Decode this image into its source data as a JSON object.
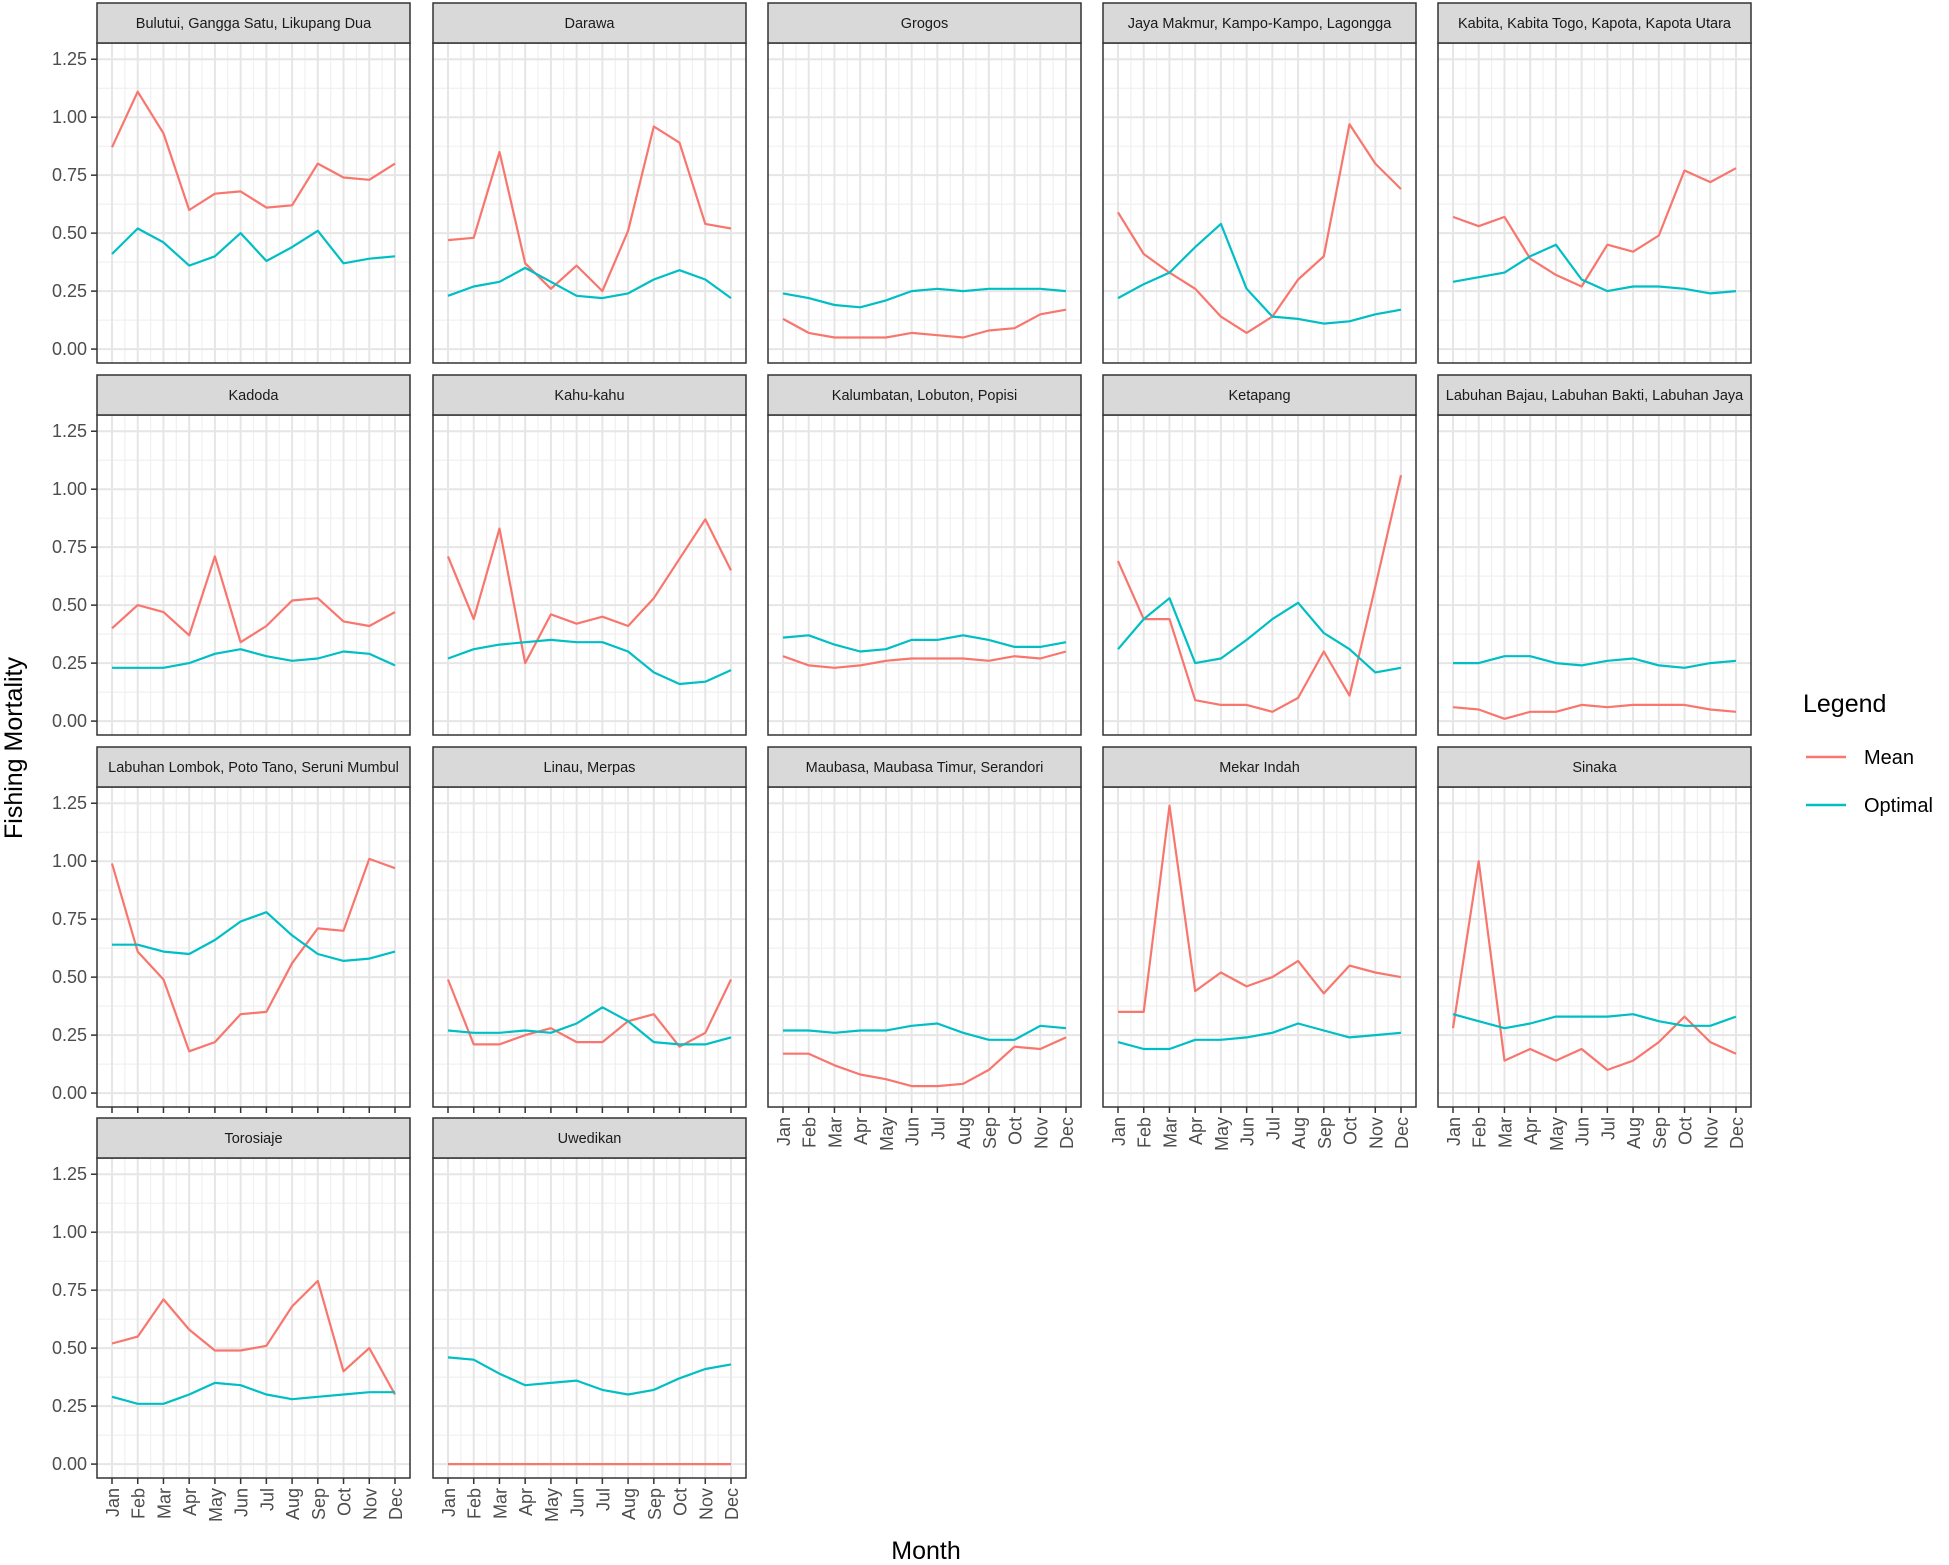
{
  "chart_data": {
    "type": "line",
    "xlabel": "Month",
    "ylabel": "Fishing Mortality",
    "ylim": [
      -0.06,
      1.32
    ],
    "yticks": [
      0.0,
      0.25,
      0.5,
      0.75,
      1.0,
      1.25
    ],
    "ytick_labels": [
      "0.00",
      "0.25",
      "0.50",
      "0.75",
      "1.00",
      "1.25"
    ],
    "categories": [
      "Jan",
      "Feb",
      "Mar",
      "Apr",
      "May",
      "Jun",
      "Jul",
      "Aug",
      "Sep",
      "Oct",
      "Nov",
      "Dec"
    ],
    "grid": true,
    "legend": {
      "title": "Legend",
      "position": "right",
      "entries": [
        {
          "name": "Mean",
          "color": "#F8766D"
        },
        {
          "name": "Optimal",
          "color": "#00BFC4"
        }
      ]
    },
    "facets": [
      {
        "title": "Bulutui, Gangga Satu, Likupang Dua",
        "series": [
          {
            "name": "Mean",
            "values": [
              0.87,
              1.11,
              0.93,
              0.6,
              0.67,
              0.68,
              0.61,
              0.62,
              0.8,
              0.74,
              0.73,
              0.8
            ]
          },
          {
            "name": "Optimal",
            "values": [
              0.41,
              0.52,
              0.46,
              0.36,
              0.4,
              0.5,
              0.38,
              0.44,
              0.51,
              0.37,
              0.39,
              0.4
            ]
          }
        ]
      },
      {
        "title": "Darawa",
        "series": [
          {
            "name": "Mean",
            "values": [
              0.47,
              0.48,
              0.85,
              0.37,
              0.26,
              0.36,
              0.25,
              0.51,
              0.96,
              0.89,
              0.54,
              0.52
            ]
          },
          {
            "name": "Optimal",
            "values": [
              0.23,
              0.27,
              0.29,
              0.35,
              0.29,
              0.23,
              0.22,
              0.24,
              0.3,
              0.34,
              0.3,
              0.22
            ]
          }
        ]
      },
      {
        "title": "Grogos",
        "series": [
          {
            "name": "Mean",
            "values": [
              0.13,
              0.07,
              0.05,
              0.05,
              0.05,
              0.07,
              0.06,
              0.05,
              0.08,
              0.09,
              0.15,
              0.17
            ]
          },
          {
            "name": "Optimal",
            "values": [
              0.24,
              0.22,
              0.19,
              0.18,
              0.21,
              0.25,
              0.26,
              0.25,
              0.26,
              0.26,
              0.26,
              0.25
            ]
          }
        ]
      },
      {
        "title": "Jaya Makmur, Kampo-Kampo, Lagongga",
        "series": [
          {
            "name": "Mean",
            "values": [
              0.59,
              0.41,
              0.33,
              0.26,
              0.14,
              0.07,
              0.14,
              0.3,
              0.4,
              0.97,
              0.8,
              0.69
            ]
          },
          {
            "name": "Optimal",
            "values": [
              0.22,
              0.28,
              0.33,
              0.44,
              0.54,
              0.26,
              0.14,
              0.13,
              0.11,
              0.12,
              0.15,
              0.17
            ]
          }
        ]
      },
      {
        "title": "Kabita, Kabita Togo, Kapota, Kapota Utara",
        "series": [
          {
            "name": "Mean",
            "values": [
              0.57,
              0.53,
              0.57,
              0.39,
              0.32,
              0.27,
              0.45,
              0.42,
              0.49,
              0.77,
              0.72,
              0.78
            ]
          },
          {
            "name": "Optimal",
            "values": [
              0.29,
              0.31,
              0.33,
              0.4,
              0.45,
              0.3,
              0.25,
              0.27,
              0.27,
              0.26,
              0.24,
              0.25
            ]
          }
        ]
      },
      {
        "title": "Kadoda",
        "series": [
          {
            "name": "Mean",
            "values": [
              0.4,
              0.5,
              0.47,
              0.37,
              0.71,
              0.34,
              0.41,
              0.52,
              0.53,
              0.43,
              0.41,
              0.47
            ]
          },
          {
            "name": "Optimal",
            "values": [
              0.23,
              0.23,
              0.23,
              0.25,
              0.29,
              0.31,
              0.28,
              0.26,
              0.27,
              0.3,
              0.29,
              0.24
            ]
          }
        ]
      },
      {
        "title": "Kahu-kahu",
        "series": [
          {
            "name": "Mean",
            "values": [
              0.71,
              0.44,
              0.83,
              0.25,
              0.46,
              0.42,
              0.45,
              0.41,
              0.53,
              0.7,
              0.87,
              0.65
            ]
          },
          {
            "name": "Optimal",
            "values": [
              0.27,
              0.31,
              0.33,
              0.34,
              0.35,
              0.34,
              0.34,
              0.3,
              0.21,
              0.16,
              0.17,
              0.22
            ]
          }
        ]
      },
      {
        "title": "Kalumbatan, Lobuton, Popisi",
        "series": [
          {
            "name": "Mean",
            "values": [
              0.28,
              0.24,
              0.23,
              0.24,
              0.26,
              0.27,
              0.27,
              0.27,
              0.26,
              0.28,
              0.27,
              0.3
            ]
          },
          {
            "name": "Optimal",
            "values": [
              0.36,
              0.37,
              0.33,
              0.3,
              0.31,
              0.35,
              0.35,
              0.37,
              0.35,
              0.32,
              0.32,
              0.34
            ]
          }
        ]
      },
      {
        "title": "Ketapang",
        "series": [
          {
            "name": "Mean",
            "values": [
              0.69,
              0.44,
              0.44,
              0.09,
              0.07,
              0.07,
              0.04,
              0.1,
              0.3,
              0.11,
              0.58,
              1.06
            ]
          },
          {
            "name": "Optimal",
            "values": [
              0.31,
              0.44,
              0.53,
              0.25,
              0.27,
              0.35,
              0.44,
              0.51,
              0.38,
              0.31,
              0.21,
              0.23
            ]
          }
        ]
      },
      {
        "title": "Labuhan Bajau, Labuhan Bakti, Labuhan Jaya",
        "series": [
          {
            "name": "Mean",
            "values": [
              0.06,
              0.05,
              0.01,
              0.04,
              0.04,
              0.07,
              0.06,
              0.07,
              0.07,
              0.07,
              0.05,
              0.04
            ]
          },
          {
            "name": "Optimal",
            "values": [
              0.25,
              0.25,
              0.28,
              0.28,
              0.25,
              0.24,
              0.26,
              0.27,
              0.24,
              0.23,
              0.25,
              0.26
            ]
          }
        ]
      },
      {
        "title": "Labuhan Lombok, Poto Tano, Seruni Mumbul",
        "series": [
          {
            "name": "Mean",
            "values": [
              0.99,
              0.61,
              0.49,
              0.18,
              0.22,
              0.34,
              0.35,
              0.56,
              0.71,
              0.7,
              1.01,
              0.97
            ]
          },
          {
            "name": "Optimal",
            "values": [
              0.64,
              0.64,
              0.61,
              0.6,
              0.66,
              0.74,
              0.78,
              0.68,
              0.6,
              0.57,
              0.58,
              0.61
            ]
          }
        ]
      },
      {
        "title": "Linau, Merpas",
        "series": [
          {
            "name": "Mean",
            "values": [
              0.49,
              0.21,
              0.21,
              0.25,
              0.28,
              0.22,
              0.22,
              0.31,
              0.34,
              0.2,
              0.26,
              0.49
            ]
          },
          {
            "name": "Optimal",
            "values": [
              0.27,
              0.26,
              0.26,
              0.27,
              0.26,
              0.3,
              0.37,
              0.31,
              0.22,
              0.21,
              0.21,
              0.24
            ]
          }
        ]
      },
      {
        "title": "Maubasa, Maubasa Timur, Serandori",
        "series": [
          {
            "name": "Mean",
            "values": [
              0.17,
              0.17,
              0.12,
              0.08,
              0.06,
              0.03,
              0.03,
              0.04,
              0.1,
              0.2,
              0.19,
              0.24
            ]
          },
          {
            "name": "Optimal",
            "values": [
              0.27,
              0.27,
              0.26,
              0.27,
              0.27,
              0.29,
              0.3,
              0.26,
              0.23,
              0.23,
              0.29,
              0.28
            ]
          }
        ]
      },
      {
        "title": "Mekar Indah",
        "series": [
          {
            "name": "Mean",
            "values": [
              0.35,
              0.35,
              1.24,
              0.44,
              0.52,
              0.46,
              0.5,
              0.57,
              0.43,
              0.55,
              0.52,
              0.5
            ]
          },
          {
            "name": "Optimal",
            "values": [
              0.22,
              0.19,
              0.19,
              0.23,
              0.23,
              0.24,
              0.26,
              0.3,
              0.27,
              0.24,
              0.25,
              0.26
            ]
          }
        ]
      },
      {
        "title": "Sinaka",
        "series": [
          {
            "name": "Mean",
            "values": [
              0.28,
              1.0,
              0.14,
              0.19,
              0.14,
              0.19,
              0.1,
              0.14,
              0.22,
              0.33,
              0.22,
              0.17
            ]
          },
          {
            "name": "Optimal",
            "values": [
              0.34,
              0.31,
              0.28,
              0.3,
              0.33,
              0.33,
              0.33,
              0.34,
              0.31,
              0.29,
              0.29,
              0.33
            ]
          }
        ]
      },
      {
        "title": "Torosiaje",
        "series": [
          {
            "name": "Mean",
            "values": [
              0.52,
              0.55,
              0.71,
              0.58,
              0.49,
              0.49,
              0.51,
              0.68,
              0.79,
              0.4,
              0.5,
              0.3
            ]
          },
          {
            "name": "Optimal",
            "values": [
              0.29,
              0.26,
              0.26,
              0.3,
              0.35,
              0.34,
              0.3,
              0.28,
              0.29,
              0.3,
              0.31,
              0.31
            ]
          }
        ]
      },
      {
        "title": "Uwedikan",
        "series": [
          {
            "name": "Mean",
            "values": [
              0.0,
              0.0,
              0.0,
              0.0,
              0.0,
              0.0,
              0.0,
              0.0,
              0.0,
              0.0,
              0.0,
              0.0
            ]
          },
          {
            "name": "Optimal",
            "values": [
              0.46,
              0.45,
              0.39,
              0.34,
              0.35,
              0.36,
              0.32,
              0.3,
              0.32,
              0.37,
              0.41,
              0.43
            ]
          }
        ]
      }
    ]
  }
}
